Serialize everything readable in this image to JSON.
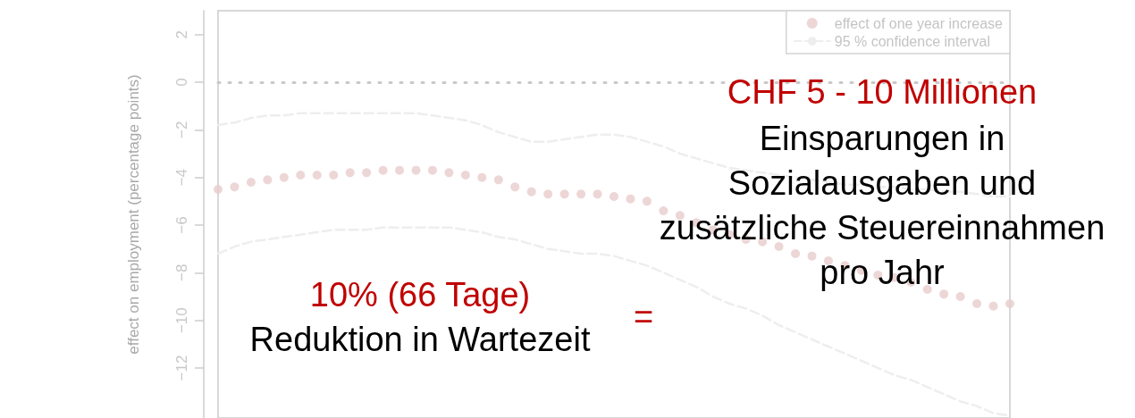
{
  "chart_data": {
    "type": "scatter",
    "ylabel": "effect on employment (percentage points)",
    "categories": [
      null,
      null,
      null,
      null,
      null,
      null,
      null,
      null,
      null,
      null,
      null,
      null,
      null,
      null,
      null,
      null,
      null,
      null,
      null,
      null,
      null,
      null,
      null,
      null,
      null,
      null,
      null,
      null,
      null,
      null,
      null,
      null,
      null,
      null,
      null,
      null,
      null,
      null,
      null,
      null,
      null,
      null,
      null,
      null,
      null,
      null,
      null,
      null,
      null
    ],
    "series": [
      {
        "name": "effect of one year increase",
        "color": "#e8cccc",
        "marker": "circle",
        "values": [
          -4.5,
          -4.4,
          -4.2,
          -4.1,
          -4.0,
          -3.9,
          -3.9,
          -3.9,
          -3.8,
          -3.8,
          -3.7,
          -3.7,
          -3.7,
          -3.7,
          -3.8,
          -3.9,
          -4.0,
          -4.1,
          -4.4,
          -4.6,
          -4.7,
          -4.7,
          -4.7,
          -4.7,
          -4.8,
          -4.9,
          -5.0,
          -5.4,
          -5.6,
          -5.9,
          -6.2,
          -6.4,
          -6.6,
          -6.7,
          -6.9,
          -7.2,
          -7.3,
          -7.5,
          -7.7,
          -7.9,
          -8.1,
          -8.2,
          -8.4,
          -8.7,
          -8.9,
          -9.0,
          -9.3,
          -9.4,
          -9.3
        ]
      },
      {
        "name": "95 % confidence interval",
        "type": "line",
        "color": "#eeeeee",
        "line_style": "dashed",
        "marker": "none",
        "values": [
          -1.8,
          -1.7,
          -1.5,
          -1.4,
          -1.4,
          -1.3,
          -1.3,
          -1.3,
          -1.3,
          -1.3,
          -1.3,
          -1.3,
          -1.3,
          -1.4,
          -1.5,
          -1.6,
          -1.8,
          -2.1,
          -2.3,
          -2.5,
          -2.5,
          -2.4,
          -2.3,
          -2.2,
          -2.2,
          -2.3,
          -2.5,
          -2.7,
          -3.0,
          -3.2,
          -3.4,
          -3.6,
          -3.7,
          -3.8,
          -3.9,
          -4.0,
          -4.1,
          -4.2,
          -4.3,
          -4.3,
          -4.4,
          -4.4,
          -4.5,
          -4.5,
          -4.6,
          -4.6,
          -4.7,
          -4.8,
          -4.8
        ]
      },
      {
        "type": "line",
        "color": "#eeeeee",
        "line_style": "dashed",
        "marker": "none",
        "values": [
          -7.2,
          -6.9,
          -6.7,
          -6.6,
          -6.5,
          -6.4,
          -6.3,
          -6.2,
          -6.2,
          -6.2,
          -6.1,
          -6.1,
          -6.1,
          -6.1,
          -6.1,
          -6.2,
          -6.3,
          -6.5,
          -6.6,
          -6.8,
          -7.0,
          -7.1,
          -7.2,
          -7.2,
          -7.3,
          -7.5,
          -7.7,
          -8.0,
          -8.3,
          -8.6,
          -9.0,
          -9.3,
          -9.5,
          -9.8,
          -10.2,
          -10.5,
          -10.8,
          -11.1,
          -11.4,
          -11.7,
          -12.0,
          -12.3,
          -12.5,
          -12.8,
          -13.1,
          -13.4,
          -13.6,
          -13.9,
          -14.0
        ]
      }
    ],
    "ylim": [
      -14.1,
      3
    ],
    "yticks": [
      {
        "value": -12,
        "label": "−12"
      },
      {
        "value": -10,
        "label": "−10"
      },
      {
        "value": -8,
        "label": "−8"
      },
      {
        "value": -6,
        "label": "−6"
      },
      {
        "value": -4,
        "label": "−4"
      },
      {
        "value": -2,
        "label": "−2"
      },
      0,
      2
    ],
    "ref_lines": [
      {
        "axis": "y",
        "value": 0,
        "color": "#c8c8c8",
        "line_style": "dotted"
      }
    ],
    "grid": false,
    "legend": "top right",
    "tick_labels": "y",
    "annotations": [
      "10% (66 Tage)",
      "Reduktion in Wartezeit",
      "=",
      "CHF 5 - 10 Millionen",
      "Einsparungen in\nSozialausgaben und\nzusätzliche Steuereinnahmen\npro Jahr"
    ]
  }
}
